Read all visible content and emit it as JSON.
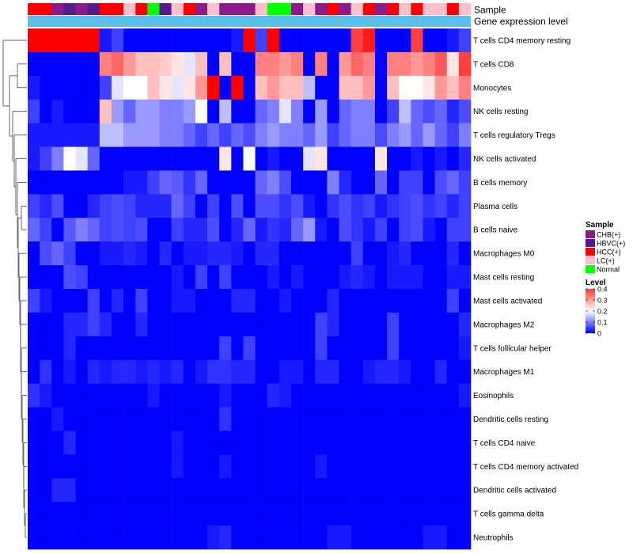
{
  "chart_data": {
    "type": "heatmap",
    "title": "",
    "annotation_tracks": [
      "Sample",
      "Gene expression level"
    ],
    "rows": [
      "T cells CD4 memory resting",
      "T cells CD8",
      "Monocytes",
      "NK cells resting",
      "T cells regulatory  Tregs",
      "NK cells activated",
      "B cells memory",
      "Plasma cells",
      "B cells naive",
      "Macrophages M0",
      "Mast cells resting",
      "Mast cells activated",
      "Macrophages M2",
      "T cells follicular helper",
      "Macrophages M1",
      "Eosinophils",
      "Dendritic cells resting",
      "T cells CD4 naive",
      "T cells CD4 memory activated",
      "Dendritic cells activated",
      "T cells gamma delta",
      "Neutrophils"
    ],
    "sample_groups": [
      "CHB(+)",
      "HBVC(+)",
      "HCC(+)",
      "LC(+)",
      "Normal"
    ],
    "sample_annotation": [
      "HCC(+)",
      "HCC(+)",
      "CHB(+)",
      "HBVC(+)",
      "CHB(+)",
      "HBVC(+)",
      "HCC(+)",
      "HCC(+)",
      "LC(+)",
      "HCC(+)",
      "Normal",
      "HBVC(+)",
      "LC(+)",
      "HCC(+)",
      "CHB(+)",
      "LC(+)",
      "CHB(+)",
      "CHB(+)",
      "CHB(+)",
      "LC(+)",
      "Normal",
      "Normal",
      "CHB(+)",
      "LC(+)",
      "CHB(+)",
      "HCC(+)",
      "CHB(+)",
      "LC(+)",
      "HCC(+)",
      "CHB(+)",
      "HCC(+)",
      "LC(+)",
      "HCC(+)",
      "LC(+)",
      "LC(+)",
      "HCC(+)",
      "LC(+)"
    ],
    "values": [
      [
        0.4,
        0.4,
        0.4,
        0.4,
        0.4,
        0.4,
        0.02,
        0.05,
        0.0,
        0.0,
        0.0,
        0.0,
        0.0,
        0.0,
        0.0,
        0.0,
        0.0,
        0.02,
        0.4,
        0.05,
        0.4,
        0.0,
        0.0,
        0.0,
        0.0,
        0.0,
        0.0,
        0.35,
        0.38,
        0.0,
        0.0,
        0.0,
        0.35,
        0.0,
        0.0,
        0.02,
        0.05
      ],
      [
        0.0,
        0.0,
        0.0,
        0.0,
        0.0,
        0.0,
        0.3,
        0.32,
        0.28,
        0.25,
        0.25,
        0.24,
        0.22,
        0.18,
        0.25,
        0.0,
        0.25,
        0.0,
        0.0,
        0.3,
        0.3,
        0.28,
        0.3,
        0.0,
        0.3,
        0.0,
        0.28,
        0.32,
        0.3,
        0.0,
        0.3,
        0.3,
        0.28,
        0.3,
        0.33,
        0.22,
        0.35
      ],
      [
        0.02,
        0.0,
        0.0,
        0.0,
        0.0,
        0.0,
        0.05,
        0.18,
        0.2,
        0.2,
        0.25,
        0.22,
        0.18,
        0.22,
        0.28,
        0.4,
        0.0,
        0.4,
        0.0,
        0.25,
        0.28,
        0.25,
        0.25,
        0.15,
        0.0,
        0.0,
        0.25,
        0.25,
        0.28,
        0.0,
        0.25,
        0.2,
        0.2,
        0.22,
        0.28,
        0.25,
        0.3
      ],
      [
        0.05,
        0.0,
        0.02,
        0.0,
        0.0,
        0.0,
        0.25,
        0.12,
        0.08,
        0.12,
        0.12,
        0.1,
        0.1,
        0.12,
        0.2,
        0.0,
        0.15,
        0.0,
        0.0,
        0.08,
        0.1,
        0.18,
        0.1,
        0.0,
        0.12,
        0.0,
        0.08,
        0.1,
        0.1,
        0.0,
        0.05,
        0.15,
        0.08,
        0.06,
        0.08,
        0.03,
        0.06
      ],
      [
        0.02,
        0.02,
        0.02,
        0.02,
        0.02,
        0.02,
        0.15,
        0.15,
        0.12,
        0.12,
        0.12,
        0.1,
        0.1,
        0.08,
        0.05,
        0.08,
        0.05,
        0.08,
        0.06,
        0.1,
        0.12,
        0.1,
        0.1,
        0.08,
        0.12,
        0.05,
        0.08,
        0.1,
        0.1,
        0.06,
        0.1,
        0.12,
        0.08,
        0.12,
        0.08,
        0.05,
        0.1
      ],
      [
        0.02,
        0.05,
        0.1,
        0.2,
        0.18,
        0.08,
        0.0,
        0.0,
        0.0,
        0.0,
        0.0,
        0.0,
        0.0,
        0.0,
        0.0,
        0.0,
        0.22,
        0.0,
        0.2,
        0.0,
        0.02,
        0.0,
        0.0,
        0.18,
        0.22,
        0.0,
        0.0,
        0.0,
        0.0,
        0.22,
        0.0,
        0.0,
        0.02,
        0.0,
        0.02,
        0.0,
        0.03
      ],
      [
        0.0,
        0.0,
        0.0,
        0.0,
        0.0,
        0.0,
        0.0,
        0.0,
        0.02,
        0.02,
        0.05,
        0.08,
        0.07,
        0.04,
        0.08,
        0.0,
        0.0,
        0.0,
        0.0,
        0.08,
        0.1,
        0.06,
        0.0,
        0.0,
        0.0,
        0.1,
        0.03,
        0.0,
        0.0,
        0.08,
        0.0,
        0.05,
        0.05,
        0.0,
        0.06,
        0.08,
        0.05
      ],
      [
        0.05,
        0.03,
        0.06,
        0.0,
        0.0,
        0.03,
        0.05,
        0.06,
        0.05,
        0.03,
        0.03,
        0.03,
        0.08,
        0.05,
        0.0,
        0.05,
        0.0,
        0.06,
        0.0,
        0.06,
        0.06,
        0.04,
        0.06,
        0.02,
        0.0,
        0.04,
        0.06,
        0.04,
        0.05,
        0.02,
        0.04,
        0.05,
        0.06,
        0.04,
        0.05,
        0.03,
        0.05
      ],
      [
        0.08,
        0.05,
        0.0,
        0.07,
        0.1,
        0.08,
        0.05,
        0.06,
        0.05,
        0.06,
        0.0,
        0.0,
        0.05,
        0.03,
        0.03,
        0.06,
        0.0,
        0.03,
        0.08,
        0.02,
        0.04,
        0.03,
        0.08,
        0.12,
        0.02,
        0.0,
        0.06,
        0.04,
        0.02,
        0.05,
        0.0,
        0.05,
        0.06,
        0.02,
        0.0,
        0.05,
        0.05
      ],
      [
        0.0,
        0.06,
        0.08,
        0.05,
        0.0,
        0.0,
        0.02,
        0.02,
        0.03,
        0.02,
        0.0,
        0.03,
        0.0,
        0.02,
        0.02,
        0.03,
        0.03,
        0.02,
        0.0,
        0.03,
        0.03,
        0.0,
        0.0,
        0.0,
        0.0,
        0.0,
        0.0,
        0.05,
        0.0,
        0.0,
        0.02,
        0.03,
        0.0,
        0.0,
        0.0,
        0.03,
        0.0
      ],
      [
        0.0,
        0.0,
        0.0,
        0.06,
        0.05,
        0.0,
        0.0,
        0.0,
        0.0,
        0.0,
        0.0,
        0.0,
        0.02,
        0.0,
        0.05,
        0.0,
        0.05,
        0.0,
        0.0,
        0.0,
        0.02,
        0.0,
        0.02,
        0.0,
        0.0,
        0.0,
        0.02,
        0.03,
        0.02,
        0.0,
        0.02,
        0.02,
        0.02,
        0.0,
        0.0,
        0.02,
        0.02
      ],
      [
        0.05,
        0.02,
        0.0,
        0.0,
        0.0,
        0.05,
        0.0,
        0.03,
        0.0,
        0.05,
        0.0,
        0.0,
        0.02,
        0.02,
        0.0,
        0.0,
        0.0,
        0.03,
        0.03,
        0.0,
        0.0,
        0.02,
        0.0,
        0.0,
        0.0,
        0.03,
        0.0,
        0.0,
        0.0,
        0.0,
        0.0,
        0.0,
        0.0,
        0.0,
        0.0,
        0.05,
        0.0
      ],
      [
        0.0,
        0.0,
        0.0,
        0.03,
        0.03,
        0.05,
        0.03,
        0.0,
        0.0,
        0.03,
        0.0,
        0.0,
        0.0,
        0.0,
        0.0,
        0.0,
        0.0,
        0.0,
        0.0,
        0.0,
        0.0,
        0.0,
        0.0,
        0.0,
        0.05,
        0.03,
        0.0,
        0.0,
        0.0,
        0.0,
        0.05,
        0.0,
        0.0,
        0.0,
        0.0,
        0.0,
        0.03
      ],
      [
        0.0,
        0.0,
        0.0,
        0.03,
        0.0,
        0.0,
        0.0,
        0.0,
        0.0,
        0.0,
        0.0,
        0.0,
        0.0,
        0.0,
        0.0,
        0.0,
        0.05,
        0.0,
        0.05,
        0.0,
        0.0,
        0.0,
        0.0,
        0.0,
        0.05,
        0.0,
        0.0,
        0.0,
        0.0,
        0.0,
        0.05,
        0.0,
        0.0,
        0.0,
        0.0,
        0.0,
        0.02
      ],
      [
        0.0,
        0.04,
        0.0,
        0.02,
        0.0,
        0.03,
        0.02,
        0.03,
        0.03,
        0.02,
        0.03,
        0.02,
        0.03,
        0.0,
        0.02,
        0.04,
        0.04,
        0.03,
        0.03,
        0.0,
        0.0,
        0.02,
        0.02,
        0.0,
        0.03,
        0.03,
        0.0,
        0.0,
        0.02,
        0.03,
        0.03,
        0.02,
        0.0,
        0.0,
        0.03,
        0.0,
        0.0
      ],
      [
        0.04,
        0.02,
        0.0,
        0.0,
        0.0,
        0.0,
        0.0,
        0.0,
        0.0,
        0.0,
        0.02,
        0.0,
        0.0,
        0.0,
        0.0,
        0.0,
        0.02,
        0.0,
        0.0,
        0.0,
        0.03,
        0.02,
        0.0,
        0.0,
        0.0,
        0.0,
        0.0,
        0.0,
        0.0,
        0.0,
        0.0,
        0.0,
        0.0,
        0.0,
        0.0,
        0.0,
        0.02
      ],
      [
        0.0,
        0.0,
        0.02,
        0.0,
        0.0,
        0.0,
        0.0,
        0.0,
        0.0,
        0.0,
        0.0,
        0.0,
        0.0,
        0.0,
        0.0,
        0.0,
        0.04,
        0.0,
        0.0,
        0.0,
        0.0,
        0.0,
        0.0,
        0.0,
        0.0,
        0.0,
        0.0,
        0.0,
        0.0,
        0.0,
        0.0,
        0.0,
        0.0,
        0.0,
        0.0,
        0.0,
        0.0
      ],
      [
        0.0,
        0.0,
        0.0,
        0.03,
        0.0,
        0.0,
        0.0,
        0.0,
        0.0,
        0.0,
        0.0,
        0.0,
        0.02,
        0.0,
        0.0,
        0.0,
        0.0,
        0.0,
        0.0,
        0.0,
        0.0,
        0.0,
        0.0,
        0.0,
        0.0,
        0.0,
        0.0,
        0.0,
        0.0,
        0.0,
        0.0,
        0.0,
        0.0,
        0.0,
        0.0,
        0.0,
        0.0
      ],
      [
        0.0,
        0.0,
        0.0,
        0.0,
        0.0,
        0.0,
        0.0,
        0.0,
        0.0,
        0.0,
        0.0,
        0.0,
        0.02,
        0.0,
        0.0,
        0.0,
        0.02,
        0.0,
        0.0,
        0.0,
        0.0,
        0.0,
        0.0,
        0.0,
        0.02,
        0.0,
        0.0,
        0.0,
        0.0,
        0.0,
        0.0,
        0.0,
        0.0,
        0.0,
        0.0,
        0.0,
        0.0
      ],
      [
        0.0,
        0.0,
        0.03,
        0.03,
        0.0,
        0.0,
        0.0,
        0.0,
        0.0,
        0.0,
        0.0,
        0.0,
        0.0,
        0.0,
        0.0,
        0.0,
        0.0,
        0.0,
        0.0,
        0.0,
        0.0,
        0.0,
        0.0,
        0.0,
        0.0,
        0.0,
        0.0,
        0.0,
        0.0,
        0.0,
        0.0,
        0.0,
        0.0,
        0.0,
        0.0,
        0.0,
        0.0
      ],
      [
        0.0,
        0.0,
        0.0,
        0.0,
        0.0,
        0.0,
        0.0,
        0.0,
        0.0,
        0.0,
        0.0,
        0.0,
        0.0,
        0.0,
        0.0,
        0.0,
        0.0,
        0.0,
        0.0,
        0.0,
        0.0,
        0.0,
        0.0,
        0.0,
        0.0,
        0.0,
        0.0,
        0.0,
        0.0,
        0.0,
        0.0,
        0.0,
        0.0,
        0.0,
        0.0,
        0.0,
        0.0
      ],
      [
        0.0,
        0.0,
        0.0,
        0.0,
        0.0,
        0.0,
        0.0,
        0.0,
        0.0,
        0.0,
        0.0,
        0.0,
        0.0,
        0.0,
        0.0,
        0.02,
        0.03,
        0.0,
        0.0,
        0.0,
        0.0,
        0.0,
        0.0,
        0.0,
        0.0,
        0.02,
        0.02,
        0.0,
        0.0,
        0.0,
        0.0,
        0.0,
        0.0,
        0.02,
        0.02,
        0.0,
        0.0
      ]
    ],
    "legend": {
      "sample_title": "Sample",
      "level_title": "Level",
      "level_ticks": [
        0.4,
        0.3,
        0.2,
        0.1,
        0
      ],
      "level_range": [
        0,
        0.4
      ]
    },
    "colors": {
      "sample": {
        "CHB(+)": "#8b1a8b",
        "HBVC(+)": "#551a8b",
        "HCC(+)": "#ff0000",
        "LC(+)": "#ffc0cb",
        "Normal": "#00ff00"
      },
      "gene_expression_bar": "#5bc0eb",
      "scale_low": "#0000ff",
      "scale_mid": "#ffffff",
      "scale_high": "#ff0000"
    }
  }
}
